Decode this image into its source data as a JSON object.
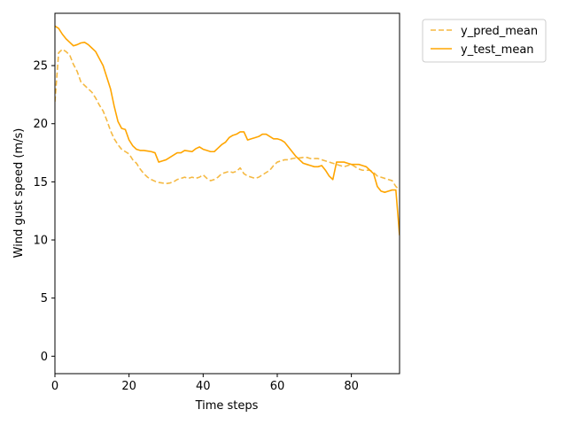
{
  "chart_data": {
    "type": "line",
    "xlabel": "Time steps",
    "ylabel": "Wind gust speed (m/s)",
    "xlim": [
      0,
      93
    ],
    "ylim": [
      -1.5,
      29.5
    ],
    "xticks": [
      0,
      20,
      40,
      60,
      80
    ],
    "yticks": [
      0,
      5,
      10,
      15,
      20,
      25
    ],
    "grid": false,
    "legend_position": "outside-top-right",
    "series": [
      {
        "name": "y_pred_mean",
        "style": "dashed",
        "color": "#f5b942",
        "x": [
          0,
          1,
          2,
          3,
          4,
          5,
          6,
          7,
          8,
          9,
          10,
          11,
          12,
          13,
          14,
          15,
          16,
          17,
          18,
          19,
          20,
          21,
          22,
          23,
          24,
          25,
          26,
          27,
          28,
          29,
          30,
          31,
          32,
          33,
          34,
          35,
          36,
          37,
          38,
          39,
          40,
          41,
          42,
          43,
          44,
          45,
          46,
          47,
          48,
          49,
          50,
          51,
          52,
          53,
          54,
          55,
          56,
          57,
          58,
          59,
          60,
          61,
          62,
          63,
          64,
          65,
          66,
          67,
          68,
          69,
          70,
          71,
          72,
          73,
          74,
          75,
          76,
          77,
          78,
          79,
          80,
          81,
          82,
          83,
          84,
          85,
          86,
          87,
          88,
          89,
          90,
          91,
          92,
          93
        ],
        "values": [
          21.9,
          26.1,
          26.4,
          26.2,
          25.9,
          25.1,
          24.5,
          23.6,
          23.3,
          23.0,
          22.7,
          22.2,
          21.6,
          21.1,
          20.3,
          19.4,
          18.7,
          18.2,
          17.8,
          17.6,
          17.4,
          16.9,
          16.6,
          16.1,
          15.7,
          15.4,
          15.2,
          15.05,
          14.95,
          14.9,
          14.85,
          14.9,
          15.0,
          15.2,
          15.3,
          15.4,
          15.3,
          15.4,
          15.3,
          15.4,
          15.6,
          15.3,
          15.1,
          15.2,
          15.4,
          15.7,
          15.8,
          15.9,
          15.8,
          15.9,
          16.2,
          15.7,
          15.5,
          15.4,
          15.3,
          15.4,
          15.6,
          15.8,
          16.0,
          16.4,
          16.7,
          16.8,
          16.9,
          16.9,
          17.0,
          17.05,
          17.05,
          17.1,
          17.1,
          17.0,
          17.0,
          17.0,
          16.9,
          16.8,
          16.7,
          16.6,
          16.5,
          16.4,
          16.3,
          16.4,
          16.5,
          16.3,
          16.1,
          16.0,
          16.0,
          16.0,
          15.8,
          15.5,
          15.4,
          15.3,
          15.2,
          15.1,
          14.6,
          14.3
        ]
      },
      {
        "name": "y_test_mean",
        "style": "solid",
        "color": "#ffa500",
        "x": [
          0,
          1,
          2,
          3,
          4,
          5,
          6,
          7,
          8,
          9,
          10,
          11,
          12,
          13,
          14,
          15,
          16,
          17,
          18,
          19,
          20,
          21,
          22,
          23,
          24,
          25,
          26,
          27,
          28,
          29,
          30,
          31,
          32,
          33,
          34,
          35,
          36,
          37,
          38,
          39,
          40,
          41,
          42,
          43,
          44,
          45,
          46,
          47,
          48,
          49,
          50,
          51,
          52,
          53,
          54,
          55,
          56,
          57,
          58,
          59,
          60,
          61,
          62,
          63,
          64,
          65,
          66,
          67,
          68,
          69,
          70,
          71,
          72,
          73,
          74,
          75,
          76,
          77,
          78,
          79,
          80,
          81,
          82,
          83,
          84,
          85,
          86,
          87,
          88,
          89,
          90,
          91,
          92,
          93
        ],
        "values": [
          28.4,
          28.2,
          27.7,
          27.3,
          27.0,
          26.7,
          26.8,
          26.95,
          27.0,
          26.8,
          26.5,
          26.2,
          25.6,
          25.0,
          24.0,
          23.0,
          21.5,
          20.2,
          19.6,
          19.5,
          18.6,
          18.1,
          17.8,
          17.7,
          17.7,
          17.65,
          17.6,
          17.5,
          16.7,
          16.8,
          16.9,
          17.1,
          17.3,
          17.5,
          17.5,
          17.7,
          17.65,
          17.6,
          17.85,
          18.0,
          17.8,
          17.7,
          17.6,
          17.6,
          17.9,
          18.2,
          18.4,
          18.8,
          19.0,
          19.1,
          19.3,
          19.3,
          18.6,
          18.7,
          18.8,
          18.9,
          19.1,
          19.1,
          18.9,
          18.7,
          18.7,
          18.6,
          18.4,
          18.0,
          17.6,
          17.2,
          16.9,
          16.6,
          16.5,
          16.4,
          16.3,
          16.3,
          16.4,
          16.0,
          15.5,
          15.2,
          16.7,
          16.7,
          16.7,
          16.6,
          16.5,
          16.5,
          16.5,
          16.4,
          16.3,
          16.0,
          15.7,
          14.6,
          14.2,
          14.1,
          14.2,
          14.3,
          14.3,
          10.4
        ]
      }
    ]
  }
}
